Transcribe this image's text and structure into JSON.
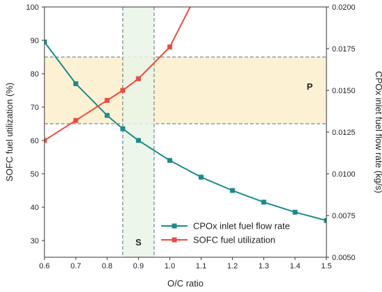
{
  "chart_data": {
    "type": "line",
    "xlabel": "O/C ratio",
    "ylabel_left": "SOFC fuel utilization (%)",
    "ylabel_right": "CPOx inlet fuel flow rate (kg/s)",
    "xlim": [
      0.6,
      1.5
    ],
    "ylim_left": [
      25,
      100
    ],
    "ylim_right": [
      0.005,
      0.02
    ],
    "x_ticks": [
      "0.6",
      "0.7",
      "0.8",
      "0.9",
      "1.0",
      "1.1",
      "1.2",
      "1.3",
      "1.4",
      "1.5"
    ],
    "y_left_ticks": [
      "30",
      "40",
      "50",
      "60",
      "70",
      "80",
      "90",
      "100"
    ],
    "y_right_ticks": [
      "0.0050",
      "0.0075",
      "0.0100",
      "0.0125",
      "0.0150",
      "0.0175",
      "0.0200"
    ],
    "series": [
      {
        "name": "CPOx inlet fuel flow rate",
        "axis": "right",
        "color": "#1a8a8a",
        "x": [
          0.6,
          0.7,
          0.8,
          0.85,
          0.9,
          1.0,
          1.1,
          1.2,
          1.3,
          1.4,
          1.5
        ],
        "values": [
          0.0179,
          0.0154,
          0.0135,
          0.0127,
          0.012,
          0.0108,
          0.0098,
          0.009,
          0.0083,
          0.0077,
          0.0072
        ]
      },
      {
        "name": "SOFC fuel utilization",
        "axis": "left",
        "color": "#ee4b3b",
        "x": [
          0.6,
          0.7,
          0.8,
          0.85,
          0.9,
          1.0,
          1.065
        ],
        "values": [
          60,
          66,
          72,
          75,
          78.5,
          88,
          100
        ]
      }
    ],
    "bands": [
      {
        "label": "P",
        "axis": "left",
        "range": [
          65,
          85
        ],
        "color": "#fbeecb"
      },
      {
        "label": "S",
        "axis": "x",
        "range": [
          0.85,
          0.95
        ],
        "color": "#e9f4e6"
      }
    ],
    "legend_position": "bottom-right"
  }
}
